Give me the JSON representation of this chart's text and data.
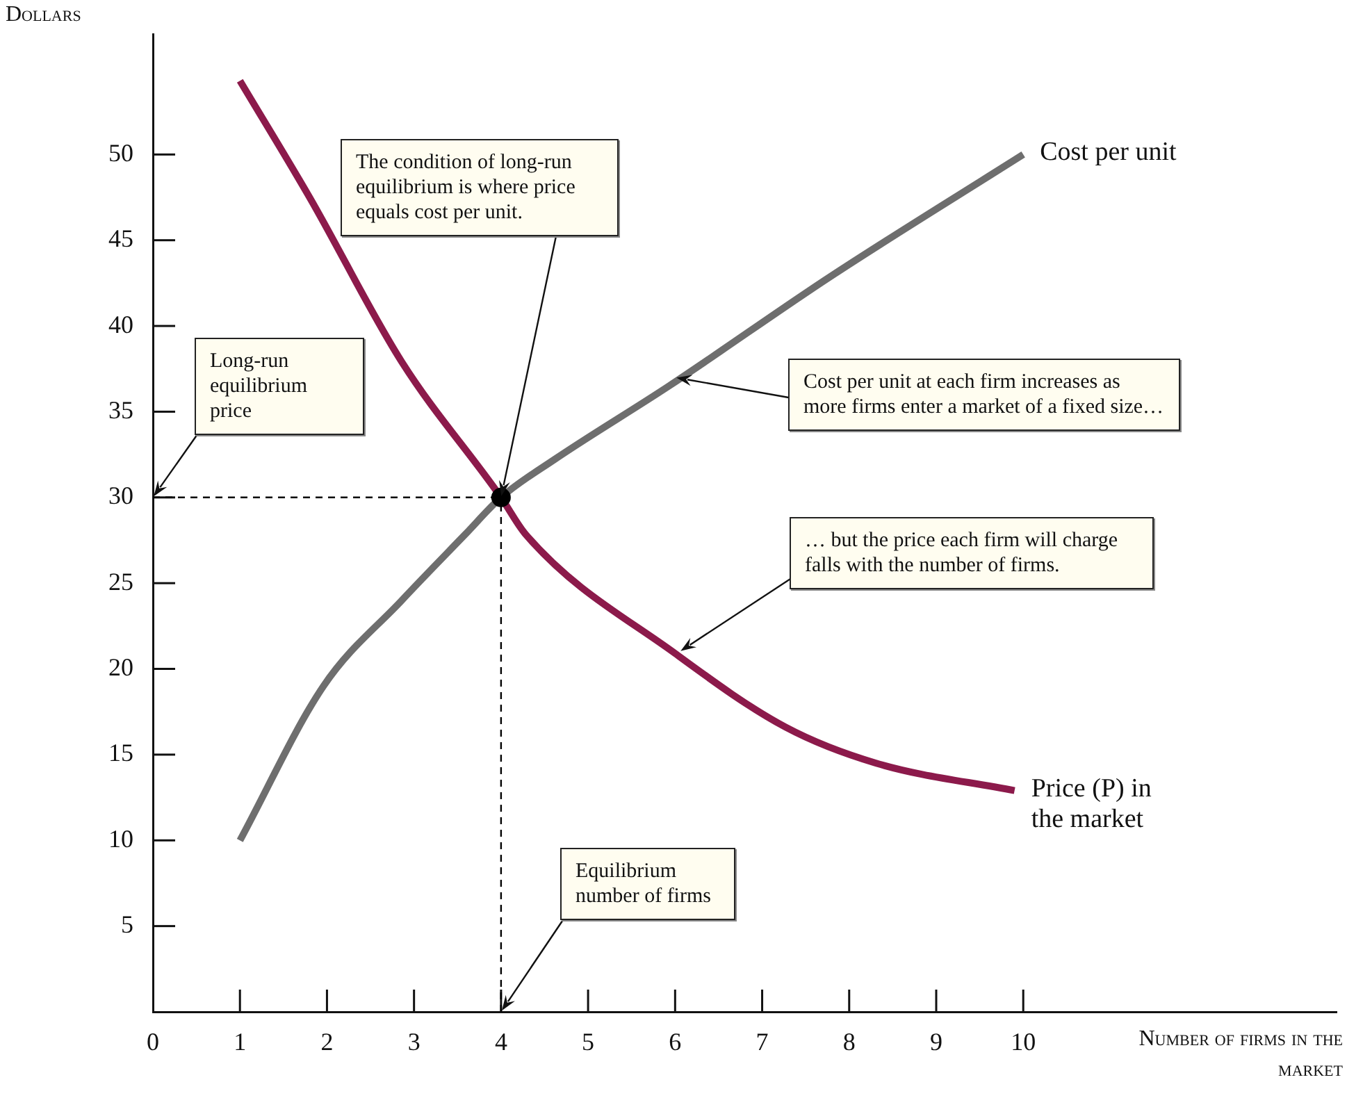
{
  "chart_data": {
    "type": "line",
    "xlabel": "Number of firms in the market",
    "ylabel": "Dollars",
    "series": [
      {
        "name": "Cost per unit",
        "color": "#6e6e6e",
        "x": [
          1,
          1.96,
          2.86,
          3.58,
          4,
          4.61,
          5.93,
          7.79,
          10
        ],
        "values": [
          10,
          19,
          24,
          27.8,
          30,
          32.2,
          36.5,
          42.9,
          50
        ]
      },
      {
        "name": "Price (P) in the market",
        "color": "#8c1a4b",
        "x": [
          1,
          1.8,
          2.86,
          4,
          4.29,
          6,
          7.27,
          8.31,
          9.9
        ],
        "values": [
          54.3,
          47.5,
          37.9,
          30,
          27.8,
          20.9,
          16.6,
          14.5,
          12.9
        ]
      },
      {
        "type": "scatter",
        "color": "#000000",
        "x": [
          4
        ],
        "values": [
          30
        ]
      }
    ],
    "xlim": [
      0,
      13.6
    ],
    "xticks": [
      0,
      1,
      2,
      3,
      4,
      5,
      6,
      7,
      8,
      9,
      10
    ],
    "ylim": [
      0,
      57
    ],
    "yticks": [
      5,
      10,
      15,
      20,
      25,
      30,
      35,
      40,
      45,
      50
    ],
    "ref_lines": [
      {
        "axis": "y",
        "value": 30,
        "line_style": "dashed",
        "color": "#000000"
      },
      {
        "axis": "x",
        "value": 4,
        "line_style": "dashed",
        "color": "#000000"
      }
    ],
    "annotations": [
      {
        "text": "The condition of long-run equilibrium is where price equals cost per unit.",
        "x": 4,
        "y": 30
      },
      {
        "text": "Long-run equilibrium price",
        "x": 0,
        "y": 30
      },
      {
        "text": "Cost per unit at each firm increases as more firms enter a market of a fixed size…",
        "x": 6,
        "y": 37
      },
      {
        "text": "… but the price each firm will charge falls with the number of firms.",
        "x": 6.05,
        "y": 21
      },
      {
        "text": "Equilibrium number of firms",
        "x": 4,
        "y": 0
      }
    ],
    "grid": false,
    "legend": false
  }
}
